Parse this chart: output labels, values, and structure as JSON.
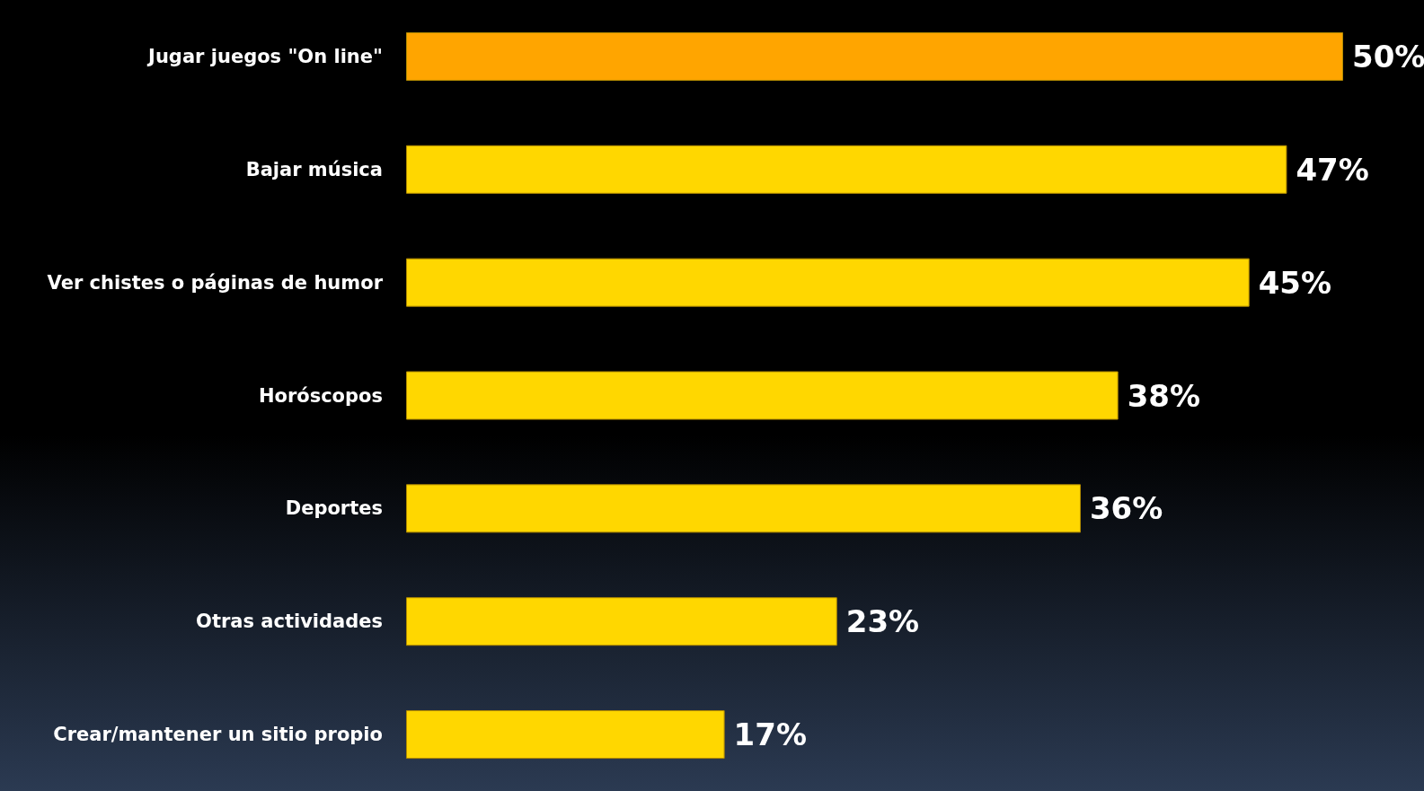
{
  "chart_data": {
    "type": "bar",
    "orientation": "horizontal",
    "categories": [
      "Jugar juegos \"On line\"",
      "Bajar música",
      "Ver chistes o páginas de humor",
      "Horóscopos",
      "Deportes",
      "Otras actividades",
      "Crear/mantener un sitio propio"
    ],
    "values": [
      50,
      47,
      45,
      38,
      36,
      23,
      17
    ],
    "colors": [
      "#ffa500",
      "#ffd700",
      "#ffd700",
      "#ffd700",
      "#ffd700",
      "#ffd700",
      "#ffd700"
    ],
    "value_labels": [
      "50%",
      "47%",
      "45%",
      "38%",
      "36%",
      "23%",
      "17%"
    ]
  }
}
